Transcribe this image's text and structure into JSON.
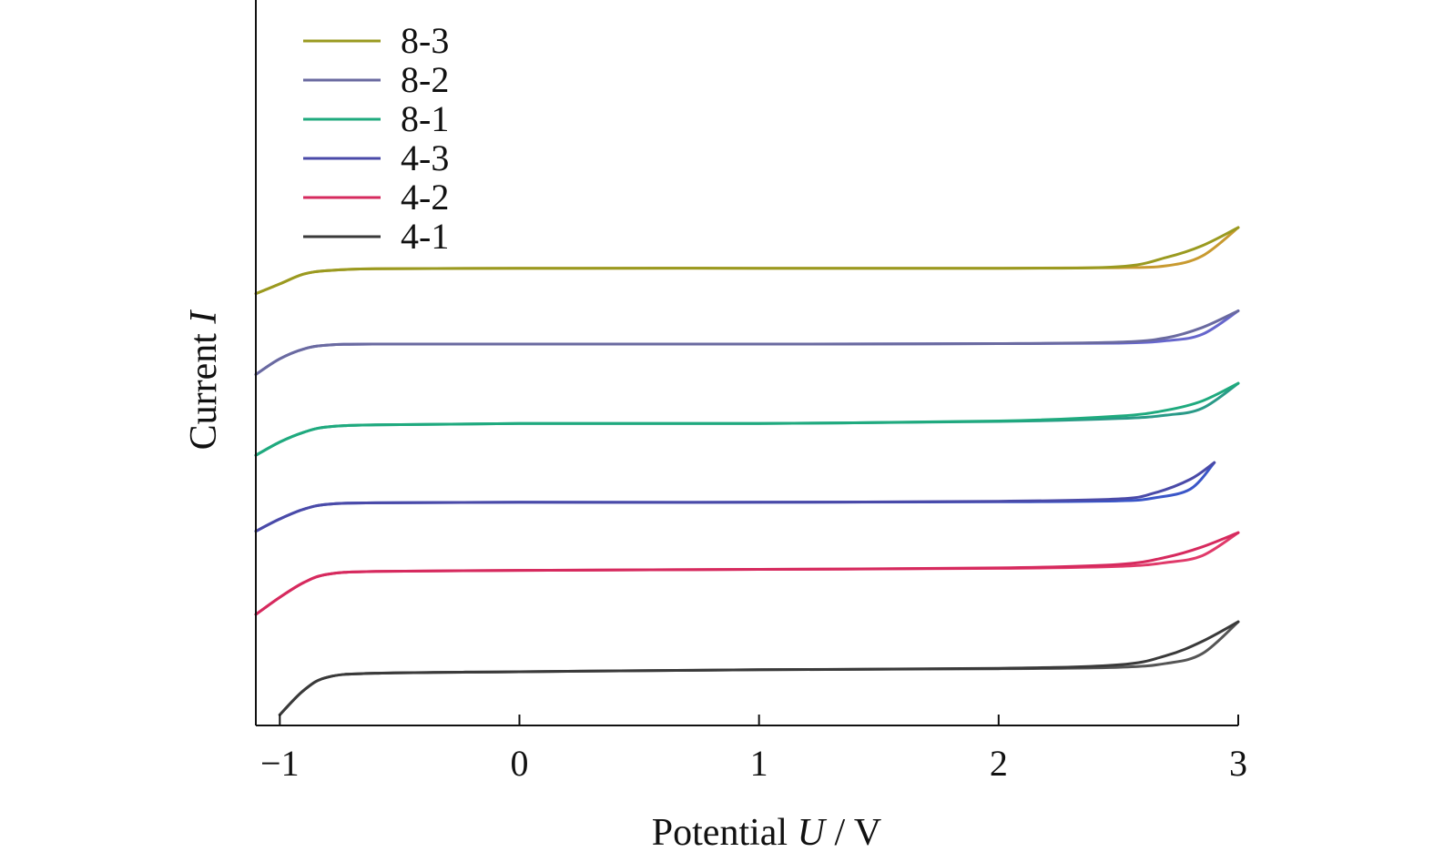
{
  "chart_data": {
    "type": "line",
    "title": "",
    "xlabel_prefix": "Potential ",
    "xlabel_var": "U",
    "xlabel_suffix": " / V",
    "ylabel_prefix": "Current ",
    "ylabel_var": "I",
    "xlim": [
      -1.1,
      3
    ],
    "xticks": [
      {
        "value": -1,
        "label": "−1"
      },
      {
        "value": 0,
        "label": "0"
      },
      {
        "value": 1,
        "label": "1"
      },
      {
        "value": 2,
        "label": "2"
      },
      {
        "value": 3,
        "label": "3"
      }
    ],
    "ylim": [
      0,
      10
    ],
    "y_tick_labels": false,
    "grid": false,
    "legend_position": "top-left",
    "legend_order": [
      "8-3",
      "8-2",
      "8-1",
      "4-3",
      "4-2",
      "4-1"
    ],
    "series": [
      {
        "name": "4-1",
        "color": "#3a3a3a",
        "color2": "#555555",
        "x": [
          -1.0,
          -0.9,
          -0.8,
          -0.6,
          0,
          1,
          2,
          2.5,
          2.7,
          2.85,
          3.0
        ],
        "y_upper": [
          0.05,
          0.55,
          0.82,
          0.9,
          0.93,
          0.97,
          1.0,
          1.07,
          1.26,
          1.55,
          1.95
        ],
        "y_lower": [
          0.05,
          0.55,
          0.82,
          0.9,
          0.93,
          0.97,
          0.99,
          1.02,
          1.1,
          1.3,
          1.95
        ]
      },
      {
        "name": "4-2",
        "color": "#d62a5e",
        "color2": "#e03a6a",
        "x": [
          -1.1,
          -1.0,
          -0.9,
          -0.8,
          -0.6,
          0,
          1,
          2,
          2.5,
          2.7,
          2.85,
          3.0
        ],
        "y_upper": [
          2.1,
          2.45,
          2.75,
          2.92,
          2.98,
          3.0,
          3.02,
          3.05,
          3.12,
          3.27,
          3.48,
          3.77
        ],
        "y_lower": [
          2.1,
          2.45,
          2.75,
          2.92,
          2.98,
          3.0,
          3.02,
          3.04,
          3.08,
          3.16,
          3.3,
          3.77
        ]
      },
      {
        "name": "4-3",
        "color": "#4a4aa8",
        "color2": "#3a56c8",
        "x": [
          -1.1,
          -1.0,
          -0.9,
          -0.8,
          -0.6,
          0,
          1,
          2,
          2.5,
          2.65,
          2.8,
          2.9
        ],
        "y_upper": [
          3.8,
          4.05,
          4.25,
          4.35,
          4.38,
          4.39,
          4.39,
          4.41,
          4.46,
          4.58,
          4.86,
          5.2
        ],
        "y_lower": [
          3.8,
          4.05,
          4.25,
          4.35,
          4.38,
          4.39,
          4.39,
          4.4,
          4.42,
          4.48,
          4.66,
          5.2
        ]
      },
      {
        "name": "8-1",
        "color": "#1faa7e",
        "color2": "#2a9a88",
        "x": [
          -1.1,
          -1.0,
          -0.9,
          -0.8,
          -0.6,
          0,
          1,
          2,
          2.5,
          2.7,
          2.85,
          3.0
        ],
        "y_upper": [
          5.35,
          5.62,
          5.82,
          5.93,
          5.97,
          6.0,
          6.0,
          6.05,
          6.15,
          6.27,
          6.46,
          6.82
        ],
        "y_lower": [
          5.35,
          5.62,
          5.82,
          5.93,
          5.97,
          6.0,
          6.0,
          6.04,
          6.1,
          6.17,
          6.31,
          6.82
        ]
      },
      {
        "name": "8-2",
        "color": "#6a6aa0",
        "color2": "#6666cc",
        "x": [
          -1.1,
          -1.0,
          -0.9,
          -0.8,
          -0.6,
          0,
          1,
          2,
          2.5,
          2.7,
          2.85,
          3.0
        ],
        "y_upper": [
          7.0,
          7.32,
          7.52,
          7.6,
          7.62,
          7.62,
          7.62,
          7.63,
          7.66,
          7.75,
          7.96,
          8.3
        ],
        "y_lower": [
          7.0,
          7.32,
          7.52,
          7.6,
          7.62,
          7.62,
          7.62,
          7.63,
          7.64,
          7.69,
          7.82,
          8.3
        ]
      },
      {
        "name": "8-3",
        "color": "#9a9a20",
        "color2": "#c89a30",
        "x": [
          -1.1,
          -1.0,
          -0.9,
          -0.8,
          -0.6,
          0,
          1,
          2,
          2.5,
          2.7,
          2.85,
          3.0
        ],
        "y_upper": [
          8.65,
          8.85,
          9.05,
          9.12,
          9.16,
          9.17,
          9.17,
          9.17,
          9.2,
          9.39,
          9.63,
          10.0
        ],
        "y_lower": [
          8.65,
          8.85,
          9.05,
          9.12,
          9.16,
          9.17,
          9.17,
          9.17,
          9.18,
          9.22,
          9.42,
          10.0
        ]
      }
    ]
  }
}
